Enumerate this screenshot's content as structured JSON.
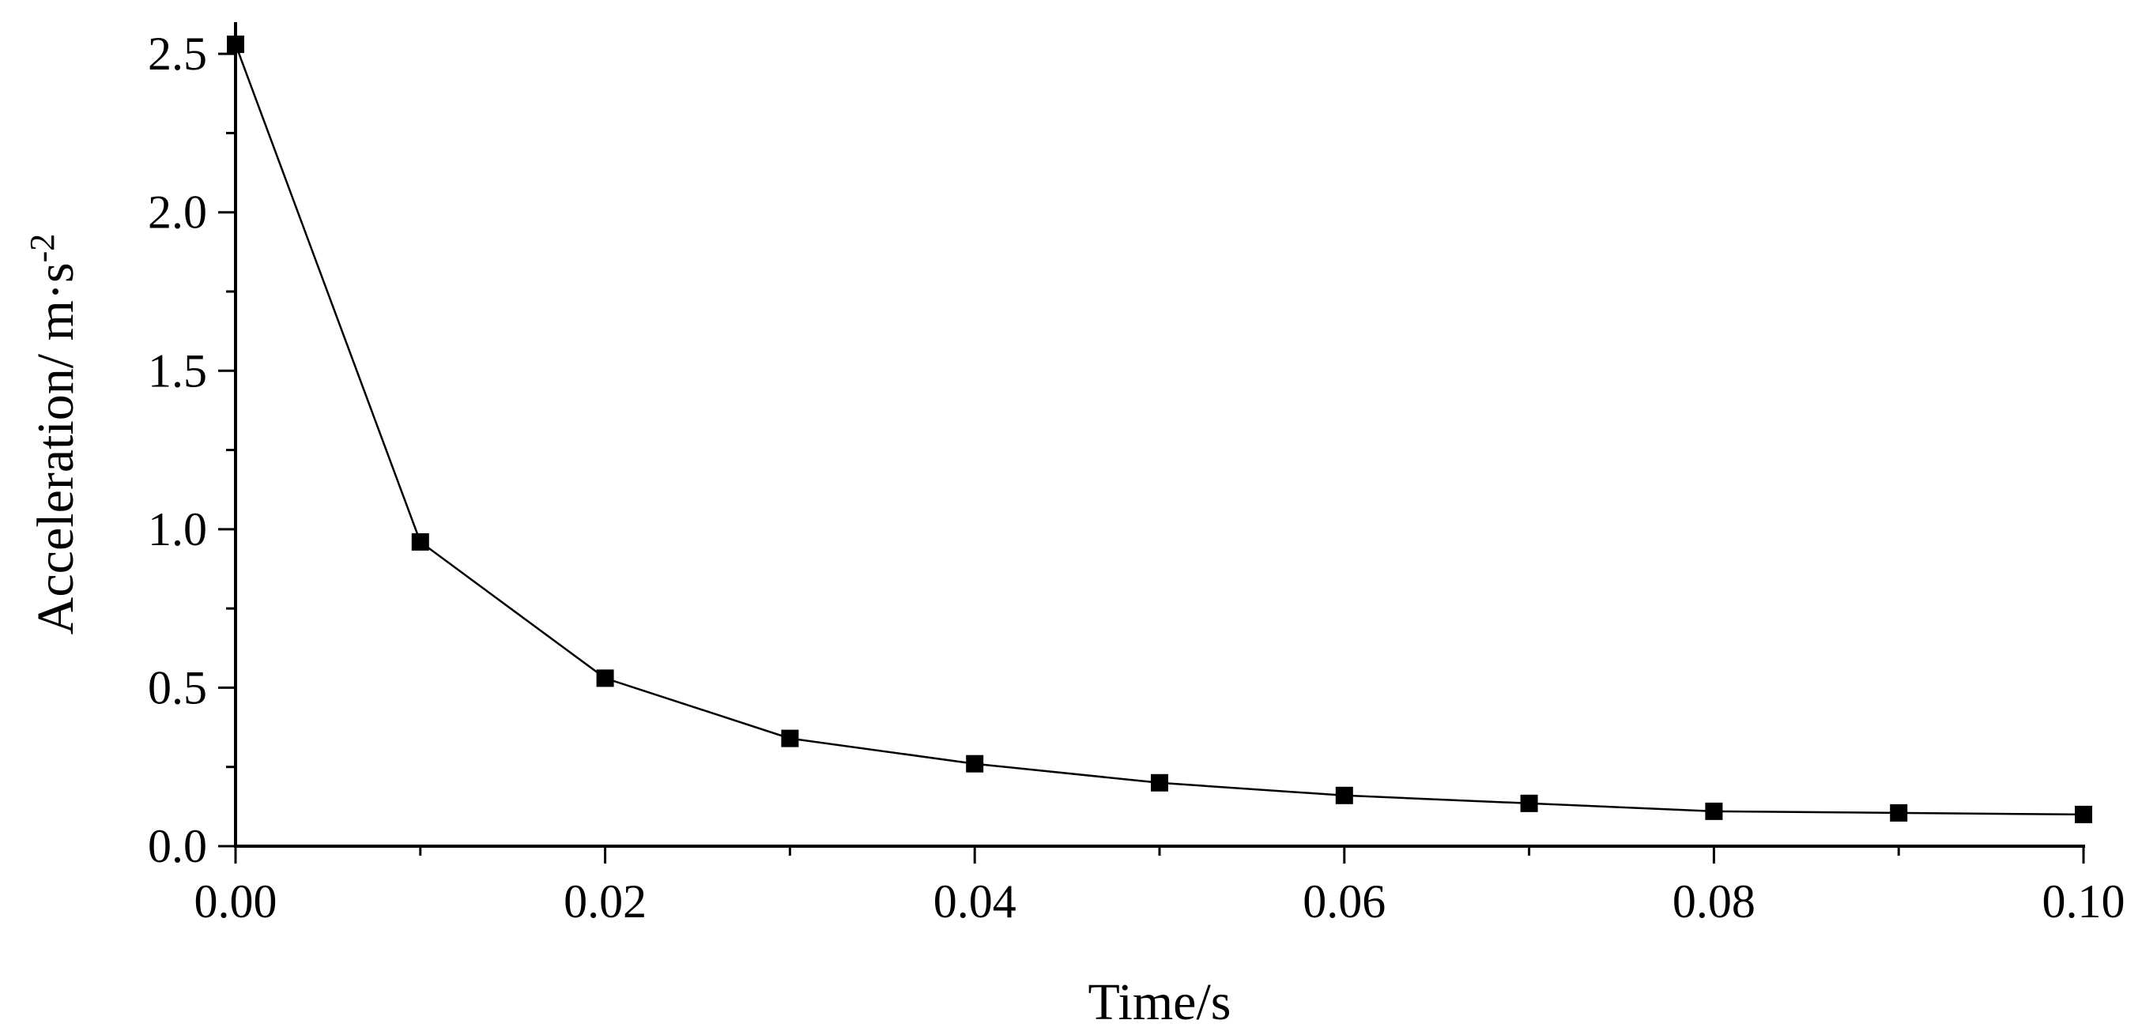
{
  "chart_data": {
    "type": "line",
    "title": "",
    "xlabel": "Time/s",
    "ylabel": {
      "main": "Acceleration/ m·s",
      "superscript": "-2"
    },
    "xlim": [
      0,
      0.1
    ],
    "ylim": [
      0,
      2.6
    ],
    "x_ticks": [
      {
        "value": 0.0,
        "label": "0.00"
      },
      {
        "value": 0.02,
        "label": "0.02"
      },
      {
        "value": 0.04,
        "label": "0.04"
      },
      {
        "value": 0.06,
        "label": "0.06"
      },
      {
        "value": 0.08,
        "label": "0.08"
      },
      {
        "value": 0.1,
        "label": "0.10"
      }
    ],
    "y_ticks": [
      {
        "value": 0.0,
        "label": "0.0"
      },
      {
        "value": 0.5,
        "label": "0.5"
      },
      {
        "value": 1.0,
        "label": "1.0"
      },
      {
        "value": 1.5,
        "label": "1.5"
      },
      {
        "value": 2.0,
        "label": "2.0"
      },
      {
        "value": 2.5,
        "label": "2.5"
      }
    ],
    "x_minor_step": 0.01,
    "y_minor_step": 0.25,
    "grid": false,
    "legend": "none",
    "marker": "square",
    "color": "#000000",
    "series": [
      {
        "x": [
          0.0,
          0.01,
          0.02,
          0.03,
          0.04,
          0.05,
          0.06,
          0.07,
          0.08,
          0.09,
          0.1
        ],
        "y": [
          2.53,
          0.96,
          0.53,
          0.34,
          0.26,
          0.2,
          0.16,
          0.135,
          0.11,
          0.105,
          0.1
        ]
      }
    ]
  }
}
